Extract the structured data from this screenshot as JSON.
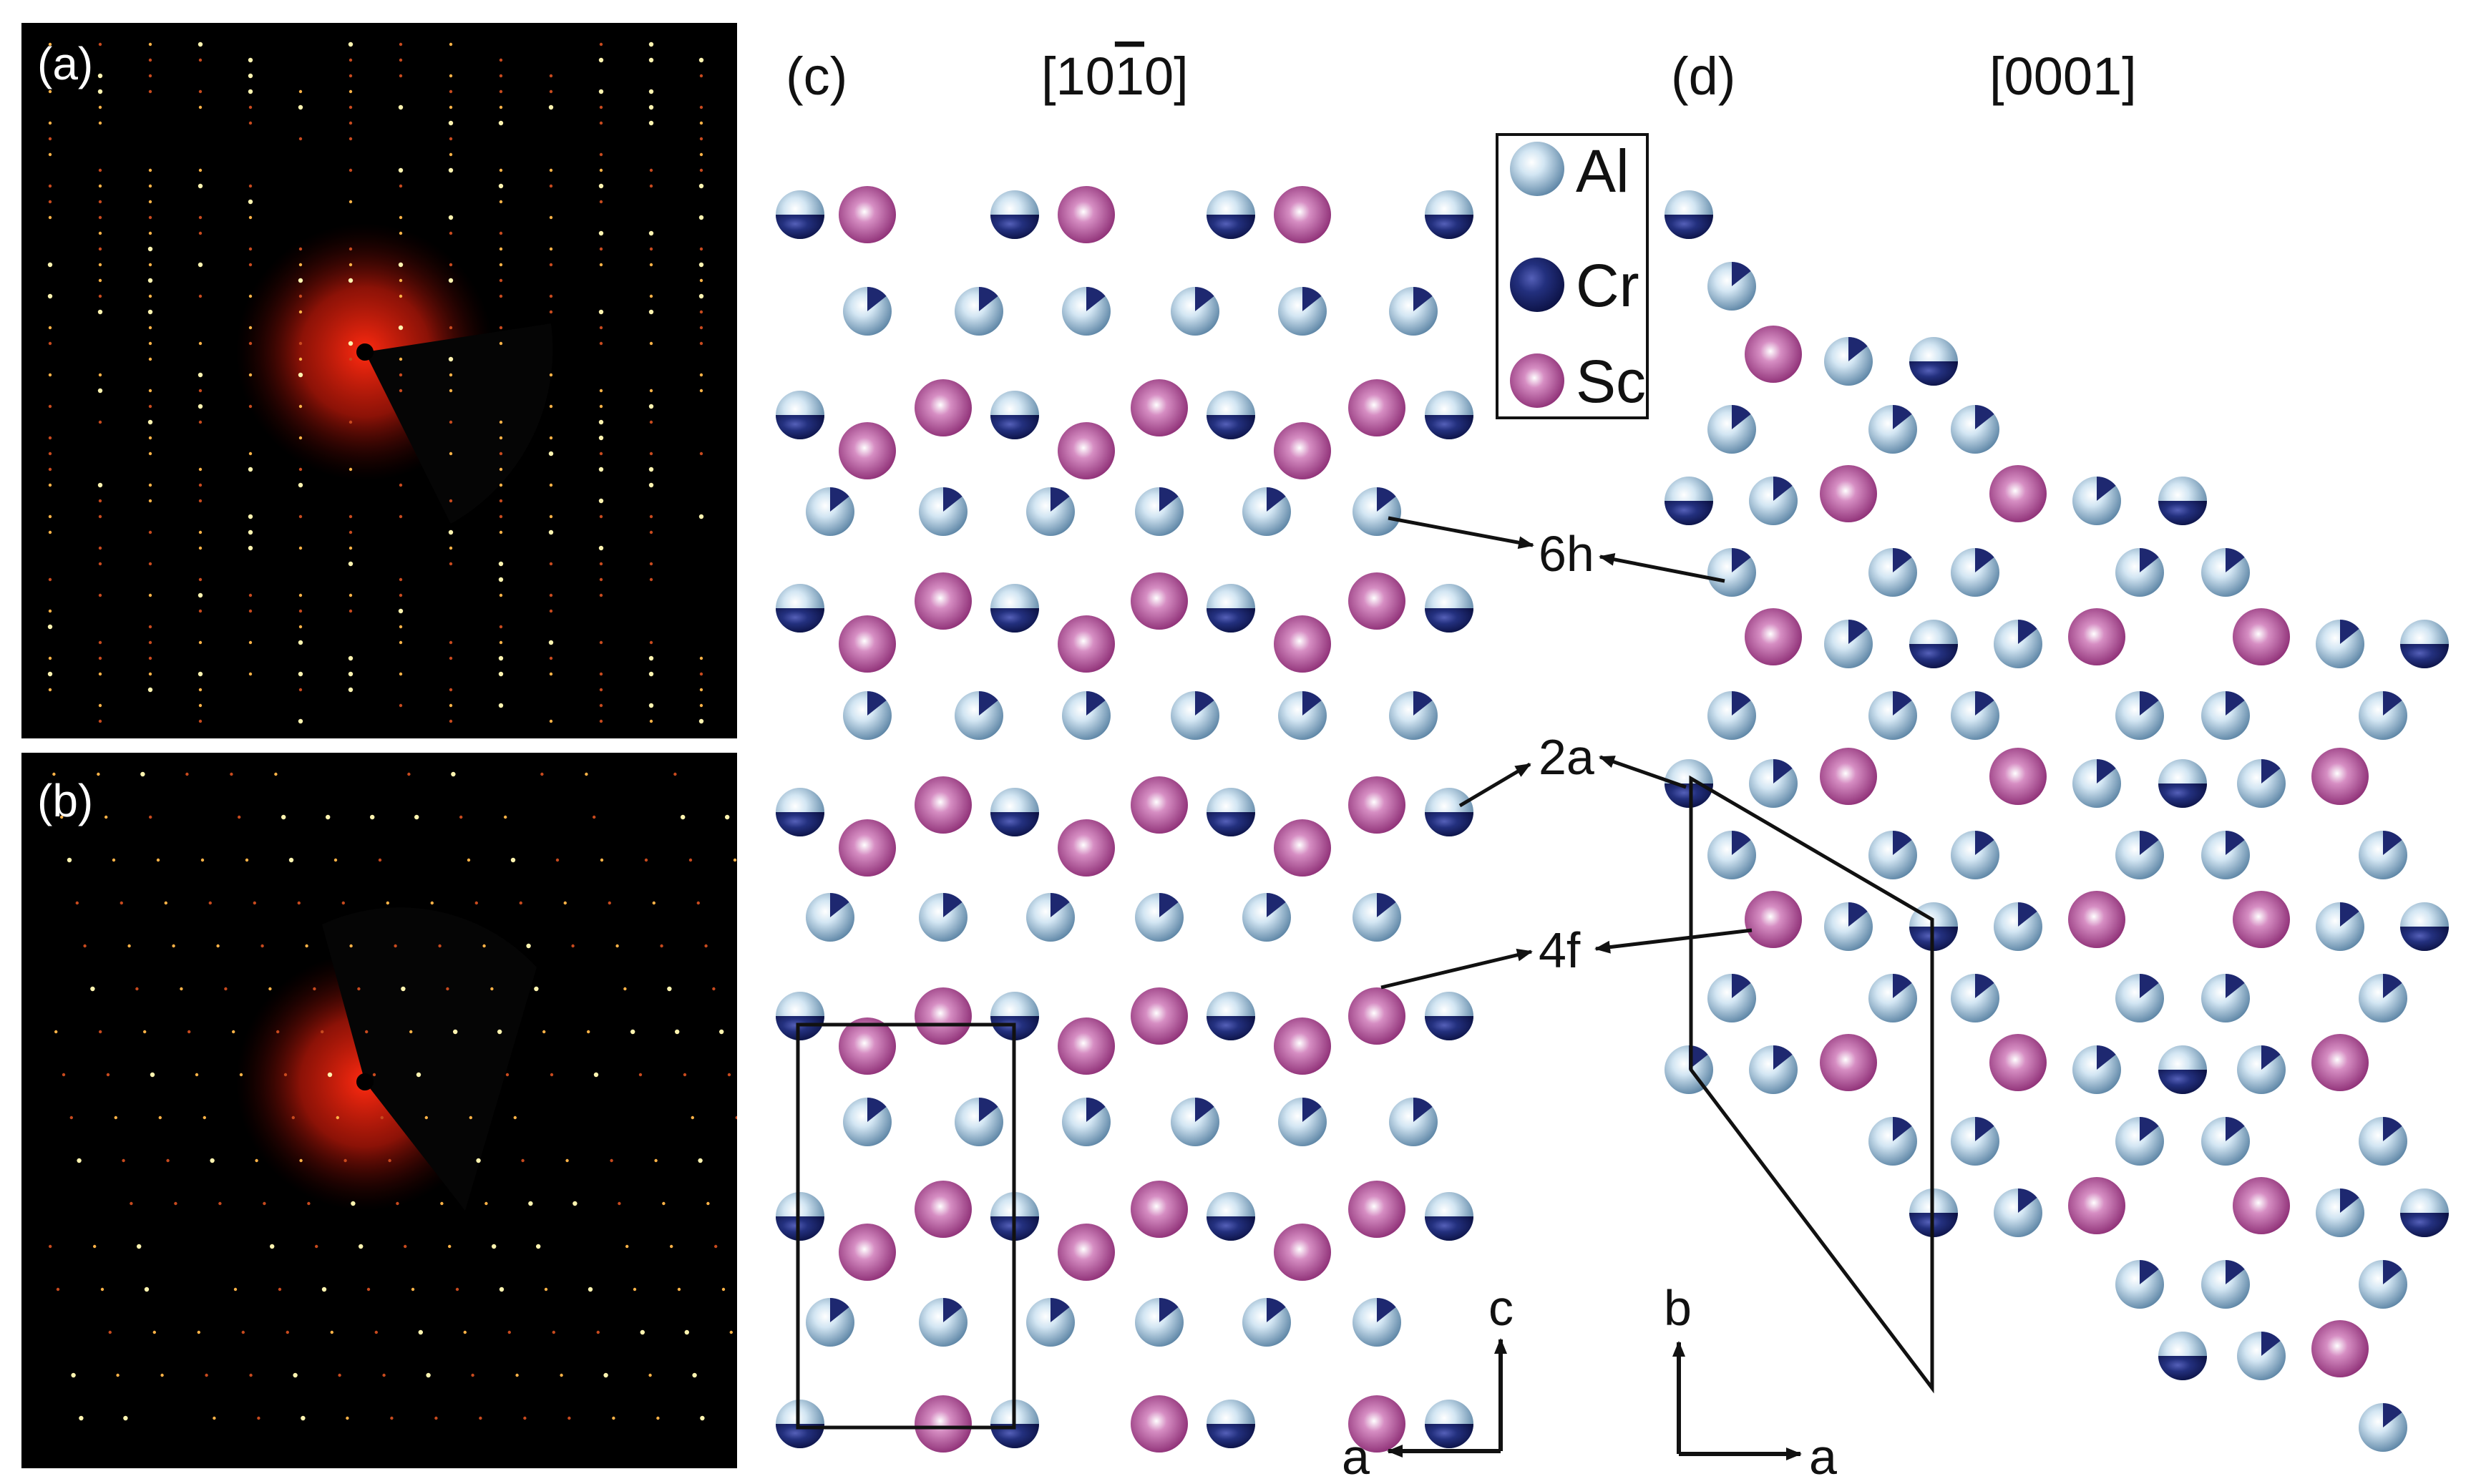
{
  "panels": {
    "a": {
      "label": "(a)"
    },
    "b": {
      "label": "(b)"
    },
    "c": {
      "label": "(c)",
      "title": "[10̄̄1̄0]"
    },
    "d": {
      "label": "(d)",
      "title": "[0001]"
    }
  },
  "legend": [
    {
      "label": "Al",
      "color": "#a9c8e0"
    },
    {
      "label": "Cr",
      "color": "#1e2870"
    },
    {
      "label": "Sc",
      "color": "#b23e96"
    }
  ],
  "site_labels": {
    "h6": "6h",
    "a2": "2a",
    "f4": "4f"
  },
  "axes_c": {
    "up": "c",
    "side": "a"
  },
  "axes_d": {
    "up": "b",
    "side": "a"
  }
}
